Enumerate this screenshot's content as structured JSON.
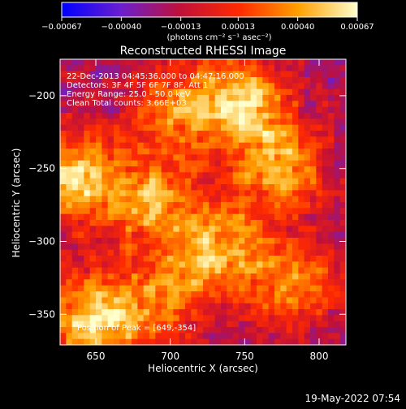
{
  "chart_data": {
    "type": "heatmap",
    "title": "Reconstructed RHESSI Image",
    "xlabel": "Heliocentric X (arcsec)",
    "ylabel": "Heliocentric Y (arcsec)",
    "xlim": [
      626,
      818
    ],
    "ylim": [
      -371,
      -175
    ],
    "x_ticks": [
      650,
      700,
      750,
      800
    ],
    "y_ticks": [
      -200,
      -250,
      -300,
      -350
    ],
    "x_tick_labels": [
      "650",
      "700",
      "750",
      "800"
    ],
    "y_tick_labels": [
      "−200",
      "−250",
      "−300",
      "−350"
    ],
    "colorbar": {
      "range": [
        -0.00067,
        0.00067
      ],
      "ticks": [
        -0.00067,
        -0.0004,
        -0.00013,
        0.00013,
        0.0004,
        0.00067
      ],
      "tick_labels": [
        "−0.00067",
        "−0.00040",
        "−0.00013",
        "0.00013",
        "0.00040",
        "0.00067"
      ],
      "unit": "(photons cm⁻² s⁻¹ asec⁻²)",
      "colormap": [
        "#0000ff",
        "#6a1fd0",
        "#c0103a",
        "#ff2a00",
        "#ffa000",
        "#ffffcc"
      ]
    },
    "info_lines": [
      "22-Dec-2013 04:45:36.000 to 04:47:16.000",
      "Detectors: 3F 4F 5F 6F 7F 8F, Att 1",
      "Energy Range: 25.0 - 50.0 keV",
      "Clean    Total counts: 3.66E+03"
    ],
    "peak_label": "Position of Peak = [649,-354]",
    "peak_position": [
      649,
      -354
    ],
    "bright_sources": [
      {
        "x": 702,
        "y": -210,
        "value": 0.0003
      },
      {
        "x": 748,
        "y": -205,
        "value": 0.0006
      },
      {
        "x": 775,
        "y": -250,
        "value": 0.0005
      },
      {
        "x": 685,
        "y": -270,
        "value": 0.00045
      },
      {
        "x": 730,
        "y": -303,
        "value": 0.0005
      },
      {
        "x": 632,
        "y": -255,
        "value": 0.0006
      },
      {
        "x": 649,
        "y": -354,
        "value": 0.00067
      },
      {
        "x": 780,
        "y": -330,
        "value": 0.0004
      },
      {
        "x": 695,
        "y": -340,
        "value": 0.0003
      }
    ],
    "background_level": -0.0002
  },
  "footer": {
    "date": "19-May-2022 07:54"
  }
}
